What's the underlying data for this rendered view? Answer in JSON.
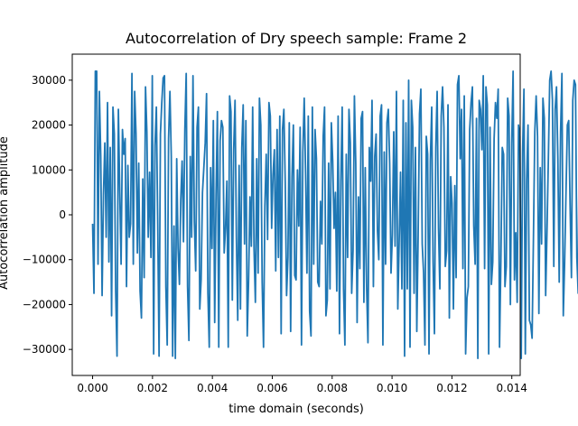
{
  "chart_data": {
    "type": "line",
    "title": "Autocorrelation of Dry speech sample: Frame 2",
    "xlabel": "time domain (seconds)",
    "ylabel": "Autocorrelation amplitude",
    "xlim": [
      -0.00068,
      0.01428
    ],
    "ylim": [
      -35800,
      35800
    ],
    "x_ticks": [
      0.0,
      0.002,
      0.004,
      0.006,
      0.008,
      0.01,
      0.012,
      0.014
    ],
    "x_tick_labels": [
      "0.000",
      "0.002",
      "0.004",
      "0.006",
      "0.008",
      "0.010",
      "0.012",
      "0.014"
    ],
    "y_ticks": [
      -30000,
      -20000,
      -10000,
      0,
      10000,
      20000,
      30000
    ],
    "y_tick_labels": [
      "−30000",
      "−20000",
      "−10000",
      "0",
      "10000",
      "20000",
      "30000"
    ],
    "grid": false,
    "color": "#1f77b4",
    "series": [
      {
        "x_start": 0.0,
        "x_step": 4.53e-05,
        "values": [
          -2000,
          -17500,
          32000,
          32000,
          -11000,
          27500,
          13000,
          -18000,
          4500,
          16000,
          -5000,
          25000,
          -10500,
          15000,
          -22500,
          24000,
          18000,
          -17000,
          -31500,
          23500,
          5500,
          -11000,
          19000,
          13500,
          17000,
          -16000,
          11000,
          -5000,
          -2000,
          31500,
          -11000,
          27500,
          18000,
          -8500,
          11500,
          -17000,
          -23000,
          8000,
          -14000,
          28500,
          18500,
          -5000,
          9500,
          -9500,
          31000,
          -31000,
          15500,
          24000,
          -2000,
          -31500,
          18000,
          25000,
          30500,
          31000,
          -16000,
          -29000,
          17000,
          27500,
          13000,
          -31500,
          -2500,
          -32000,
          12500,
          -7500,
          -15500,
          3500,
          12000,
          -6000,
          19000,
          31500,
          -16000,
          -28000,
          13000,
          -5000,
          31000,
          -1500,
          -12500,
          19500,
          24000,
          -21000,
          -14500,
          5000,
          10500,
          16000,
          27000,
          -17500,
          -29500,
          10500,
          -7500,
          21000,
          -24000,
          4500,
          23000,
          -29500,
          16500,
          21000,
          19500,
          -8500,
          -3000,
          7500,
          -29500,
          26500,
          23000,
          -19000,
          14500,
          25500,
          -5000,
          -23500,
          11000,
          -21000,
          15000,
          24500,
          -6500,
          21000,
          -27000,
          -14500,
          4000,
          -7000,
          24000,
          -7500,
          -19500,
          12500,
          -13000,
          26000,
          20000,
          -15000,
          -29500,
          2000,
          13500,
          -5500,
          25000,
          22000,
          -3000,
          9000,
          14500,
          -12500,
          19000,
          -9500,
          22000,
          -26500,
          19000,
          23500,
          7500,
          -18000,
          -9500,
          20500,
          -26000,
          8500,
          20000,
          -13500,
          -14500,
          10000,
          -2500,
          19500,
          -29000,
          14000,
          26000,
          9500,
          -13000,
          22000,
          -21500,
          -27000,
          24000,
          -11000,
          19000,
          12500,
          -15000,
          -16000,
          3000,
          -6500,
          17500,
          24000,
          -22500,
          -19000,
          11500,
          -16500,
          20500,
          12000,
          -3000,
          5000,
          -17000,
          22000,
          -26500,
          7500,
          24000,
          -16500,
          -29000,
          13500,
          -9500,
          23500,
          16000,
          -17500,
          -8000,
          26500,
          11500,
          -24000,
          4000,
          -12000,
          21500,
          23000,
          -19500,
          10500,
          -16000,
          -28500,
          15000,
          7500,
          25500,
          -16000,
          13000,
          18000,
          -3500,
          -10000,
          22000,
          24500,
          -29000,
          14000,
          -11000,
          20500,
          23500,
          11500,
          -13000,
          -4500,
          18500,
          -7000,
          27500,
          -21000,
          -6000,
          9500,
          -16500,
          25500,
          -31500,
          20500,
          -16500,
          30000,
          -29500,
          25500,
          19500,
          -17500,
          15000,
          -26000,
          -4500,
          22500,
          28000,
          -6500,
          -13000,
          -29000,
          17500,
          13500,
          -31000,
          12000,
          24000,
          -10500,
          -26500,
          15000,
          27500,
          -3000,
          -16500,
          22000,
          28500,
          19500,
          -11500,
          -8000,
          24500,
          -23000,
          8500,
          2500,
          -21000,
          6500,
          -14000,
          29000,
          31000,
          12500,
          23500,
          -12000,
          26500,
          -31000,
          -18500,
          -16000,
          19000,
          25000,
          28500,
          -2500,
          -11000,
          21500,
          -32000,
          25500,
          23500,
          14500,
          31000,
          -12000,
          28500,
          24500,
          -31000,
          19500,
          -15500,
          -10500,
          17000,
          25000,
          21500,
          28000,
          -29500,
          -10000,
          15000,
          13500,
          -16000,
          -11500,
          26000,
          22000,
          -20000,
          16000,
          32000,
          -14500,
          -4000,
          -19500,
          20000,
          17500,
          -32000,
          14000,
          28000,
          -31000,
          8000,
          20000,
          -23500,
          -24500,
          -27500,
          -5000,
          18500,
          26500,
          17500,
          -22000,
          10500,
          -6500,
          26000,
          21500,
          -18000,
          -3500,
          12500,
          30000,
          32000,
          25500,
          -11500,
          23500,
          28500,
          12500,
          -15000,
          18500,
          31500,
          -22500,
          -10500,
          5000,
          20000,
          21000,
          2500,
          -14000,
          25500,
          30000,
          29000,
          -9500,
          -17500,
          32000,
          32000,
          -2000
        ]
      }
    ]
  }
}
